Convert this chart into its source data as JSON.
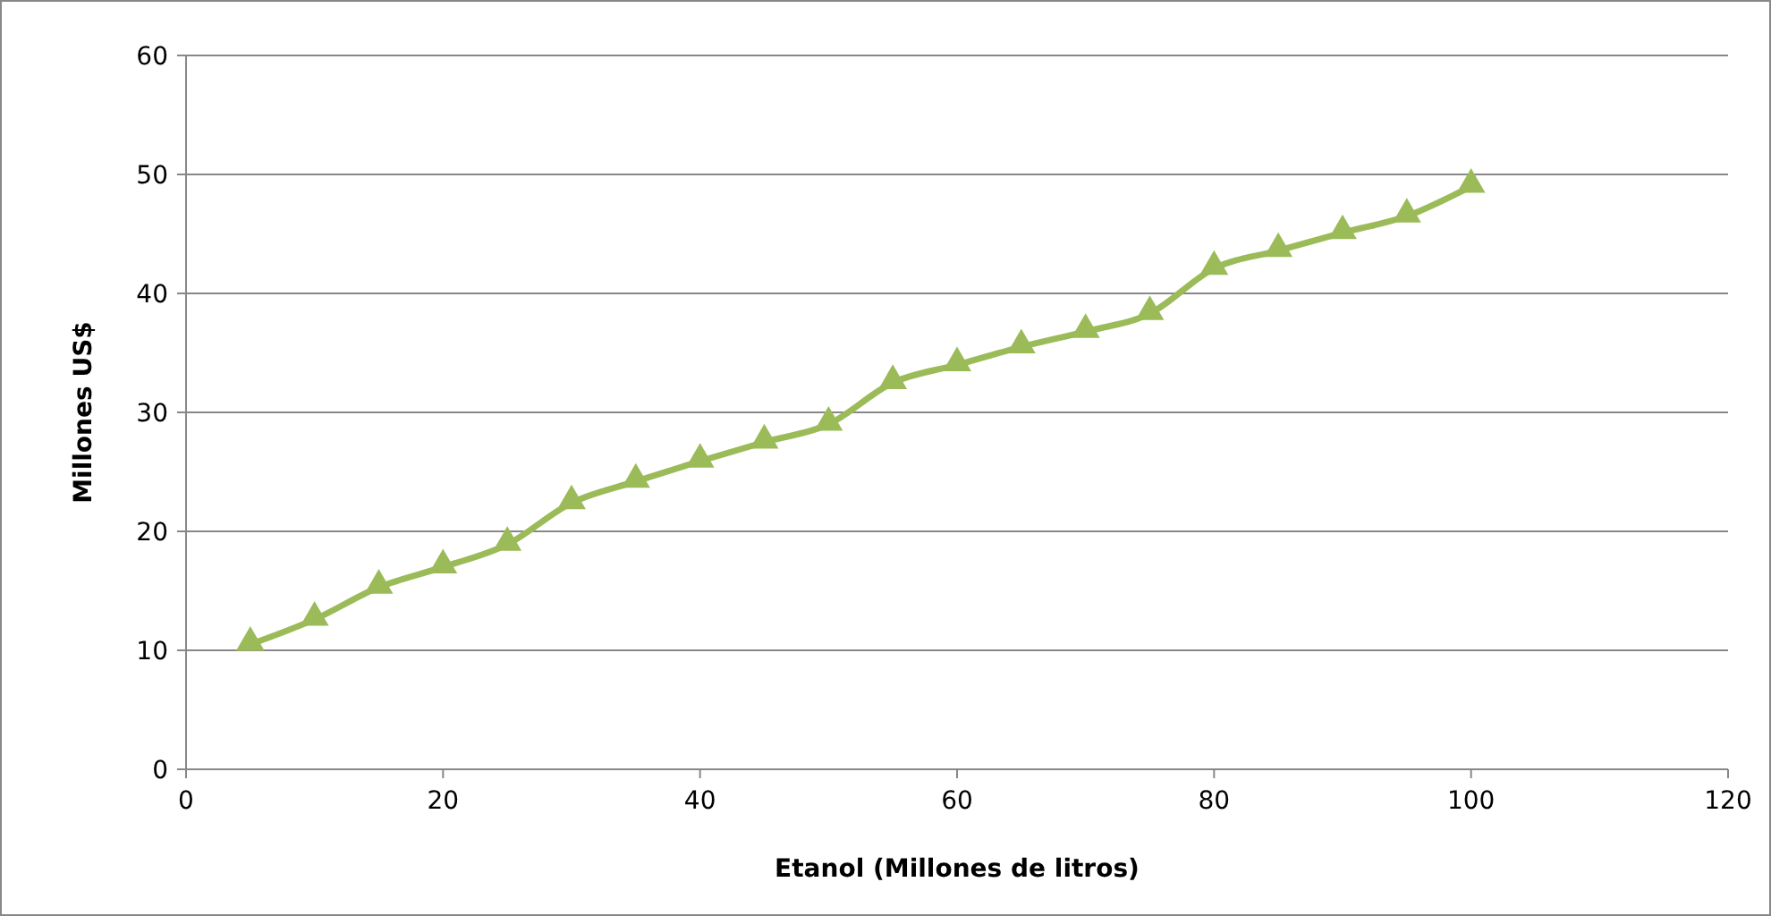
{
  "chart_data": {
    "type": "line",
    "xlabel": "Etanol (Millones de litros)",
    "ylabel": "Millones US$",
    "x": [
      5,
      10,
      15,
      20,
      25,
      30,
      35,
      40,
      45,
      50,
      55,
      60,
      65,
      70,
      75,
      80,
      85,
      90,
      95,
      100
    ],
    "series": [
      {
        "color": "#9bbb59",
        "values": [
          10.5,
          12.6,
          15.3,
          17.0,
          18.9,
          22.4,
          24.2,
          25.9,
          27.5,
          29.0,
          32.5,
          34.0,
          35.5,
          36.8,
          38.3,
          42.1,
          43.6,
          45.1,
          46.5,
          49.0
        ]
      }
    ],
    "xlim": [
      0,
      120
    ],
    "xticks": [
      0,
      20,
      40,
      60,
      80,
      100,
      120
    ],
    "ylim": [
      0,
      60
    ],
    "yticks": [
      0,
      10,
      20,
      30,
      40,
      50,
      60
    ],
    "grid": "y",
    "marker": "triangle",
    "line_style": "solid"
  }
}
